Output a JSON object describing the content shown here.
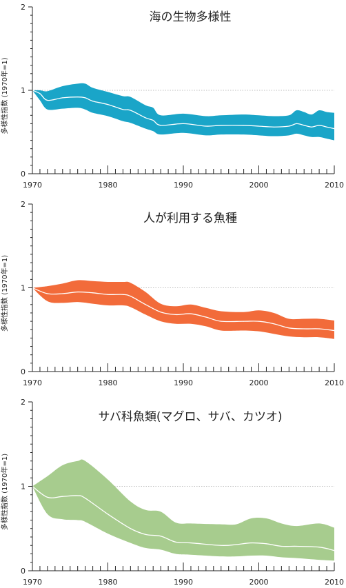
{
  "chart_data": [
    {
      "type": "area",
      "title": "海の生物多様性",
      "ylabel": "多様性指数 (1970年=1)",
      "xlabel": "",
      "xlim": [
        1970,
        2010
      ],
      "ylim": [
        0,
        2
      ],
      "x_ticks": [
        "1970",
        "1980",
        "1990",
        "2000",
        "2010"
      ],
      "y_ticks": [
        "0",
        "1",
        "2"
      ],
      "reference_line": 1,
      "grid": false,
      "band_color": "#1aa5c8",
      "line_color": "#ffffff",
      "x": [
        1970,
        1971,
        1972,
        1974,
        1976,
        1977,
        1978,
        1980,
        1982,
        1983,
        1985,
        1986,
        1987,
        1990,
        1993,
        1995,
        1998,
        2000,
        2002,
        2004,
        2005,
        2006,
        2007,
        2008,
        2009,
        2010
      ],
      "values": [
        1.0,
        0.96,
        0.88,
        0.91,
        0.92,
        0.91,
        0.87,
        0.83,
        0.77,
        0.76,
        0.67,
        0.64,
        0.58,
        0.6,
        0.57,
        0.58,
        0.58,
        0.57,
        0.56,
        0.57,
        0.6,
        0.58,
        0.56,
        0.58,
        0.56,
        0.54
      ],
      "upper": [
        1.0,
        1.0,
        0.99,
        1.05,
        1.08,
        1.08,
        1.03,
        0.98,
        0.93,
        0.92,
        0.82,
        0.79,
        0.7,
        0.72,
        0.69,
        0.7,
        0.71,
        0.7,
        0.69,
        0.7,
        0.76,
        0.74,
        0.71,
        0.76,
        0.74,
        0.73
      ],
      "lower": [
        1.0,
        0.88,
        0.77,
        0.78,
        0.79,
        0.77,
        0.73,
        0.69,
        0.63,
        0.61,
        0.54,
        0.51,
        0.47,
        0.49,
        0.46,
        0.47,
        0.47,
        0.46,
        0.45,
        0.46,
        0.48,
        0.46,
        0.44,
        0.44,
        0.42,
        0.4
      ]
    },
    {
      "type": "area",
      "title": "人が利用する魚種",
      "ylabel": "多様性指数 (1970年=1)",
      "xlabel": "",
      "xlim": [
        1970,
        2010
      ],
      "ylim": [
        0,
        2
      ],
      "x_ticks": [
        "1970",
        "1980",
        "1990",
        "2000",
        "2010"
      ],
      "y_ticks": [
        "0",
        "1",
        "2"
      ],
      "reference_line": 1,
      "grid": false,
      "band_color": "#f26b3a",
      "line_color": "#ffffff",
      "x": [
        1970,
        1972,
        1974,
        1976,
        1978,
        1980,
        1982,
        1983,
        1985,
        1987,
        1989,
        1991,
        1993,
        1995,
        1998,
        2000,
        2002,
        2004,
        2006,
        2008,
        2010
      ],
      "values": [
        1.0,
        0.93,
        0.93,
        0.95,
        0.94,
        0.92,
        0.92,
        0.9,
        0.8,
        0.71,
        0.68,
        0.69,
        0.65,
        0.6,
        0.6,
        0.6,
        0.57,
        0.52,
        0.51,
        0.51,
        0.49
      ],
      "upper": [
        1.0,
        1.02,
        1.05,
        1.09,
        1.08,
        1.07,
        1.07,
        1.06,
        0.95,
        0.81,
        0.78,
        0.8,
        0.76,
        0.72,
        0.71,
        0.73,
        0.7,
        0.63,
        0.63,
        0.63,
        0.61
      ],
      "lower": [
        1.0,
        0.84,
        0.82,
        0.83,
        0.81,
        0.79,
        0.79,
        0.77,
        0.68,
        0.6,
        0.57,
        0.57,
        0.54,
        0.49,
        0.49,
        0.48,
        0.45,
        0.42,
        0.41,
        0.41,
        0.39
      ]
    },
    {
      "type": "area",
      "title": "サバ科魚類(マグロ、サバ、カツオ)",
      "ylabel": "多様性指数 (1970年=1)",
      "xlabel": "",
      "xlim": [
        1970,
        2010
      ],
      "ylim": [
        0,
        2
      ],
      "x_ticks": [
        "1970",
        "1980",
        "1990",
        "2000",
        "2010"
      ],
      "y_ticks": [
        "0",
        "1",
        "2"
      ],
      "reference_line": 1,
      "grid": false,
      "band_color": "#a7cc8e",
      "line_color": "#ffffff",
      "x": [
        1970,
        1972,
        1974,
        1976,
        1977,
        1980,
        1983,
        1985,
        1987,
        1989,
        1991,
        1995,
        1997,
        1999,
        2001,
        2003,
        2005,
        2008,
        2010
      ],
      "values": [
        1.0,
        0.87,
        0.88,
        0.89,
        0.86,
        0.67,
        0.5,
        0.43,
        0.41,
        0.34,
        0.33,
        0.3,
        0.31,
        0.33,
        0.32,
        0.29,
        0.29,
        0.28,
        0.24
      ],
      "upper": [
        1.0,
        1.12,
        1.25,
        1.3,
        1.3,
        1.08,
        0.82,
        0.72,
        0.7,
        0.57,
        0.56,
        0.55,
        0.55,
        0.62,
        0.62,
        0.56,
        0.53,
        0.56,
        0.51
      ],
      "lower": [
        1.0,
        0.67,
        0.61,
        0.6,
        0.58,
        0.44,
        0.33,
        0.27,
        0.25,
        0.2,
        0.19,
        0.17,
        0.17,
        0.18,
        0.18,
        0.16,
        0.15,
        0.13,
        0.12
      ]
    }
  ]
}
